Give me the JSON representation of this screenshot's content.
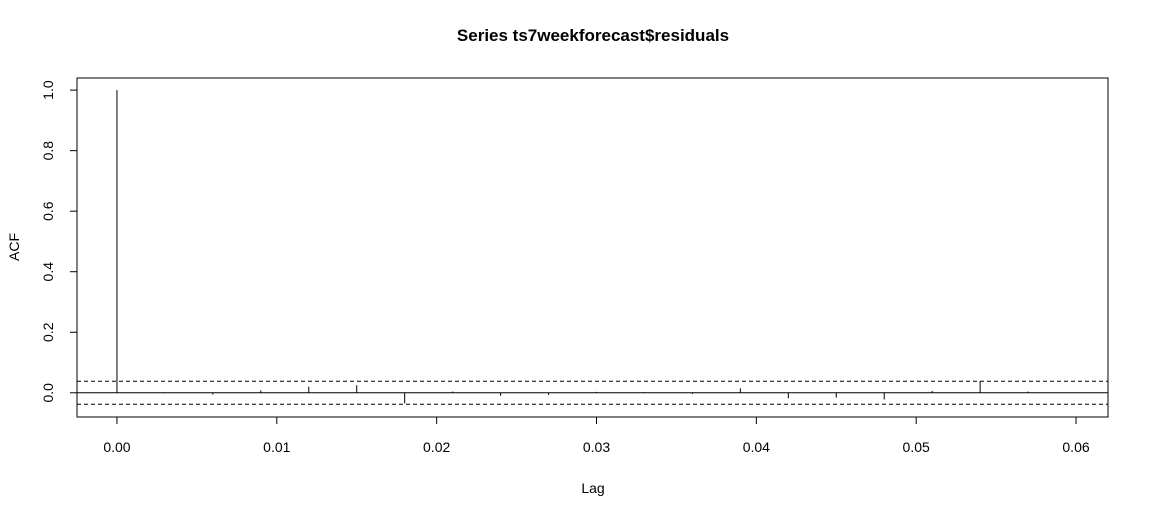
{
  "chart_data": {
    "type": "bar",
    "title": "Series  ts7weekforecast$residuals",
    "xlabel": "Lag",
    "ylabel": "ACF",
    "xlim": [
      -0.0025,
      0.062
    ],
    "ylim": [
      -0.08,
      1.04
    ],
    "x_ticks": [
      "0.00",
      "0.01",
      "0.02",
      "0.03",
      "0.04",
      "0.05",
      "0.06"
    ],
    "y_ticks": [
      "0.0",
      "0.2",
      "0.4",
      "0.6",
      "0.8",
      "1.0"
    ],
    "confidence_bounds": [
      0.038,
      -0.038
    ],
    "lags": [
      0.0,
      0.003,
      0.006,
      0.009,
      0.012,
      0.015,
      0.018,
      0.021,
      0.024,
      0.027,
      0.03,
      0.033,
      0.036,
      0.039,
      0.042,
      0.045,
      0.048,
      0.051,
      0.054,
      0.057
    ],
    "values": [
      1.0,
      -0.002,
      -0.006,
      0.008,
      0.02,
      0.025,
      -0.035,
      0.004,
      -0.01,
      -0.007,
      0.003,
      0.002,
      -0.004,
      0.015,
      -0.018,
      -0.016,
      -0.022,
      0.006,
      0.038,
      0.004
    ],
    "grid": false,
    "legend": "none"
  }
}
